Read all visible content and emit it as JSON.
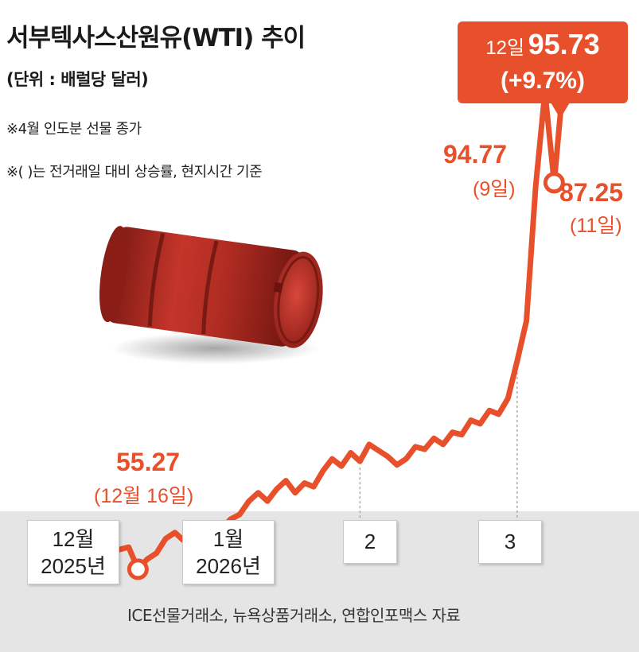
{
  "header": {
    "title": "서부텍사스산원유(WTI) 추이",
    "unit": "(단위 : 배럴당 달러)",
    "note1": "※4월 인도분 선물 종가",
    "note2": "※(    )는 전거래일 대비 상승률, 현지시간 기준"
  },
  "source": "ICE선물거래소, 뉴욕상품거래소, 연합인포맥스 자료",
  "colors": {
    "line": "#e8502c",
    "band": "#e5e5e5",
    "barrel": "#b22d22"
  },
  "illustration": "oil-barrel-icon",
  "axis_labels": [
    {
      "line1": "12월",
      "line2": "2025년"
    },
    {
      "line1": "1월",
      "line2": "2026년"
    },
    {
      "line1": "2",
      "line2": ""
    },
    {
      "line1": "3",
      "line2": ""
    }
  ],
  "annotations": {
    "low": {
      "value": "55.27",
      "date": "(12월 16일)"
    },
    "sep9": {
      "value": "94.77",
      "date": "(9일)"
    },
    "nov11": {
      "value": "87.25",
      "date": "(11일)"
    },
    "latest": {
      "date": "12일",
      "value": "95.73",
      "change": "(+9.7%)"
    }
  },
  "chart_data": {
    "type": "line",
    "title": "서부텍사스산원유(WTI) 추이",
    "ylabel": "(단위 : 배럴당 달러)",
    "ylim": [
      50,
      100
    ],
    "x_ticks": [
      "12월 2025년",
      "1월 2026년",
      "2",
      "3"
    ],
    "grid": false,
    "series": [
      {
        "values": [
          57.9,
          57.3,
          57.8,
          58.1,
          57.2,
          56.9,
          57.1,
          55.27,
          56.1,
          56.6,
          57.8,
          58.3,
          57.6,
          58.1,
          57.4,
          57.1,
          58.6,
          59.4,
          59.8,
          60.9,
          61.6,
          60.9,
          61.9,
          62.6,
          61.6,
          62.4,
          62.1,
          63.4,
          64.4,
          63.8,
          64.9,
          64.2,
          65.6,
          65.1,
          64.6,
          63.9,
          64.4,
          65.4,
          65.2,
          66.1,
          65.6,
          66.6,
          66.4,
          67.6,
          67.3,
          68.4,
          68.1,
          69.4,
          72.5,
          75.8,
          86.9,
          94.77,
          87.25,
          95.73
        ]
      }
    ],
    "annotations": [
      {
        "label": "55.27",
        "note": "(12월 16일)"
      },
      {
        "label": "94.77",
        "note": "(9일)"
      },
      {
        "label": "87.25",
        "note": "(11일)"
      },
      {
        "label": "95.73",
        "note": "12일 (+9.7%)"
      }
    ]
  }
}
